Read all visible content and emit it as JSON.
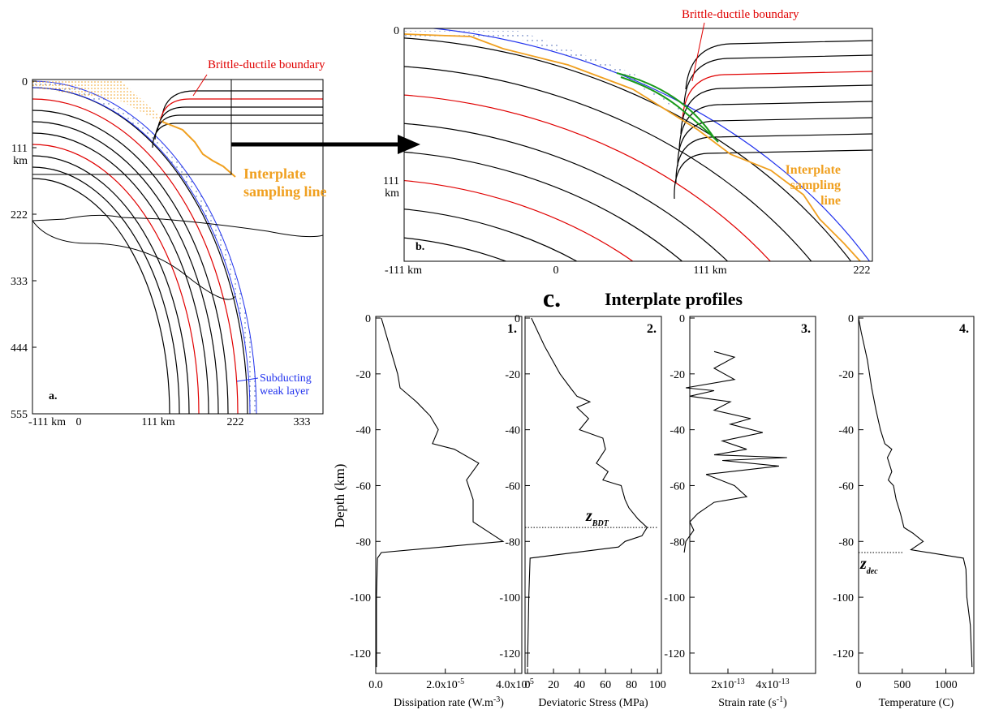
{
  "figure": {
    "panel_a": {
      "label": "a.",
      "yticks": [
        "0",
        "111 km",
        "222",
        "333",
        "444",
        "555"
      ],
      "xticks": [
        "-111 km",
        "0",
        "111 km",
        "222",
        "333"
      ],
      "bdt_label": "Brittle-ductile boundary",
      "sampling_label": [
        "Interplate",
        "sampling line"
      ],
      "weak_layer_label": [
        "Subducting",
        "weak layer"
      ]
    },
    "panel_b": {
      "label": "b.",
      "yticks": [
        "0",
        "111 km"
      ],
      "xticks": [
        "-111 km",
        "0",
        "111 km",
        "222"
      ],
      "bdt_label": "Brittle-ductile boundary",
      "sampling_label": [
        "Interplate",
        "sampling",
        "line"
      ]
    },
    "panel_c": {
      "label": "c.",
      "title": "Interplate profiles",
      "ylabel": "Depth (km)"
    }
  },
  "chart_data": [
    {
      "type": "line",
      "panel_label": "1.",
      "xlabel": {
        "main": "Dissipation rate (W.m",
        "sup": "-3",
        "end": ")"
      },
      "xlim": [
        0,
        4.2e-05
      ],
      "xticks": [
        {
          "value": 0,
          "label": "0.0"
        },
        {
          "value": 2e-05,
          "label": "2.0x10",
          "sup": "-5"
        },
        {
          "value": 4e-05,
          "label": "4.0x10",
          "sup": "-5"
        }
      ],
      "ylim": [
        -127,
        0
      ],
      "yticks": [
        0,
        -20,
        -40,
        -60,
        -80,
        -100,
        -120
      ],
      "series": [
        {
          "color": "#000000",
          "x": [
            1.6e-06,
            6.3e-06,
            7e-06,
            1.17e-05,
            1.56e-05,
            1.8e-05,
            1.63e-05,
            2.26e-05,
            2.96e-05,
            2.61e-05,
            2.8e-05,
            2.8e-05,
            3.66e-05,
            1.6e-06,
            5e-07,
            2e-07,
            2e-07
          ],
          "values": [
            0,
            -20,
            -25,
            -30,
            -35,
            -40,
            -45,
            -47,
            -52,
            -58,
            -65,
            -73,
            -80,
            -84,
            -86,
            -100,
            -125
          ]
        }
      ]
    },
    {
      "type": "line",
      "panel_label": "2.",
      "xlabel": {
        "main": "Deviatoric Stress (MPa)"
      },
      "xlim": [
        -1.9,
        103
      ],
      "xticks": [
        0,
        20,
        40,
        60,
        80,
        100
      ],
      "ylim": [
        -127,
        0
      ],
      "yticks": [
        0,
        -20,
        -40,
        -60,
        -80,
        -100,
        -120
      ],
      "series": [
        {
          "color": "#000000",
          "x": [
            3,
            13,
            25,
            33,
            38,
            48,
            38,
            47,
            40,
            58,
            60,
            53,
            62,
            58,
            72,
            75,
            78,
            85,
            92,
            88,
            75,
            70,
            2,
            1,
            0
          ],
          "values": [
            0,
            -10,
            -20,
            -25,
            -28,
            -30,
            -32,
            -36,
            -40,
            -43,
            -47,
            -52,
            -55,
            -58,
            -60,
            -65,
            -68,
            -72,
            -75,
            -78,
            -80,
            -82,
            -86,
            -100,
            -125
          ]
        }
      ],
      "annotation": {
        "text": "z",
        "sub": "BDT",
        "value": -75
      }
    },
    {
      "type": "line",
      "panel_label": "3.",
      "xlabel": {
        "main": "Strain rate (s",
        "sup": "-1",
        "end": ")"
      },
      "xlim": [
        2.9e-14,
        5.93e-13
      ],
      "xticks": [
        {
          "value": 2e-13,
          "label": "2x10",
          "sup": "-13"
        },
        {
          "value": 4e-13,
          "label": "4x10",
          "sup": "-13"
        }
      ],
      "ylim": [
        -127,
        0
      ],
      "yticks": [
        0,
        -20,
        -40,
        -60,
        -80,
        -100,
        -120
      ],
      "series": [
        {
          "color": "#000000",
          "x": [
            1.38e-13,
            2.29e-13,
            1.38e-13,
            2.29e-13,
            1.1e-14,
            1.38e-13,
            2.9e-14,
            2.11e-13,
            1.38e-13,
            3.02e-13,
            2.11e-13,
            3.56e-13,
            1.75e-13,
            2.84e-13,
            1.38e-13,
            4.65e-13,
            1.75e-13,
            4.29e-13,
            1.02e-13,
            2.29e-13,
            2.84e-13,
            1.38e-13,
            6.5e-14,
            2.9e-14,
            4.7e-14,
            1.1e-14,
            4e-15
          ],
          "values": [
            -12,
            -14,
            -18,
            -22,
            -25,
            -26,
            -28,
            -30,
            -33,
            -36,
            -38,
            -41,
            -44,
            -47,
            -49,
            -50,
            -51,
            -53,
            -56,
            -60,
            -64,
            -66,
            -70,
            -73,
            -76,
            -80,
            -84
          ]
        }
      ]
    },
    {
      "type": "line",
      "panel_label": "4.",
      "xlabel": {
        "main": "Temperature (C)"
      },
      "xlim": [
        0,
        1320
      ],
      "xticks": [
        0,
        500,
        1000
      ],
      "ylim": [
        -127,
        0
      ],
      "yticks": [
        0,
        -20,
        -40,
        -60,
        -80,
        -100,
        -120
      ],
      "series": [
        {
          "color": "#000000",
          "x": [
            0,
            30,
            100,
            150,
            200,
            250,
            300,
            380,
            330,
            380,
            340,
            400,
            430,
            480,
            520,
            620,
            740,
            600,
            1200,
            1230,
            1240,
            1280,
            1300
          ],
          "values": [
            0,
            -5,
            -15,
            -25,
            -33,
            -40,
            -45,
            -47,
            -50,
            -55,
            -58,
            -60,
            -65,
            -70,
            -75,
            -77,
            -80,
            -83,
            -86,
            -90,
            -100,
            -110,
            -125
          ]
        }
      ],
      "annotation": {
        "text": "z",
        "sub": "dec",
        "value": -84
      }
    }
  ]
}
